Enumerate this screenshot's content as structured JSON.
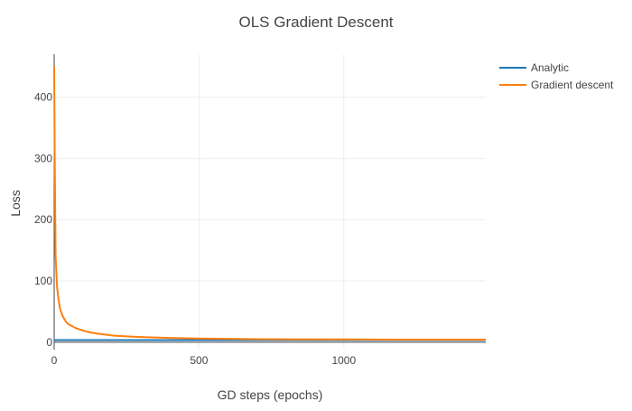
{
  "chart_data": {
    "type": "line",
    "title": "OLS Gradient Descent",
    "xlabel": "GD steps (epochs)",
    "ylabel": "Loss",
    "xlim": [
      0,
      1490
    ],
    "ylim": [
      -12,
      470
    ],
    "x_ticks": [
      0,
      500,
      1000
    ],
    "y_ticks": [
      0,
      100,
      200,
      300,
      400
    ],
    "grid": true,
    "legend_position": "top-right",
    "series": [
      {
        "name": "Analytic",
        "color": "#1f77b4",
        "x": [
          0,
          1490
        ],
        "y": [
          3.5,
          3.5
        ]
      },
      {
        "name": "Gradient descent",
        "color": "#ff7f0e",
        "x": [
          0,
          2,
          5,
          10,
          15,
          20,
          30,
          40,
          50,
          75,
          100,
          125,
          150,
          200,
          250,
          300,
          400,
          500,
          600,
          700,
          800,
          1000,
          1200,
          1490
        ],
        "y": [
          450,
          300,
          140,
          90,
          70,
          55,
          42,
          34,
          29,
          23,
          19,
          16,
          14,
          11,
          9.5,
          8.5,
          7,
          6,
          5.5,
          5,
          4.8,
          4.5,
          4.3,
          4.2
        ]
      }
    ]
  }
}
